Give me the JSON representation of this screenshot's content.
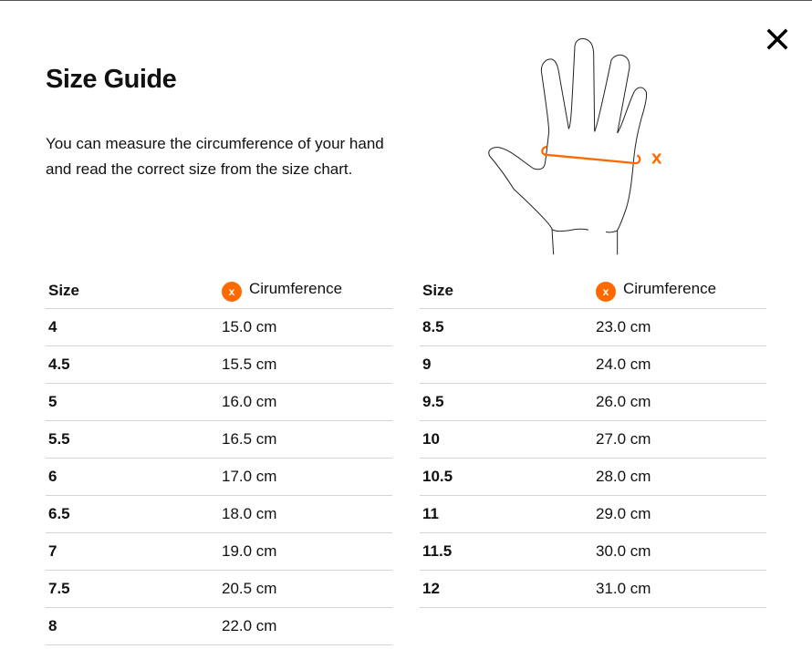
{
  "title": "Size Guide",
  "intro": "You can measure the circumference of your hand and read the correct size from the size chart.",
  "accent_color": "#ff6a00",
  "illustration": {
    "icon": "hand-measure-illustration",
    "marker_label": "x"
  },
  "close_icon": "close-icon",
  "table_headers": {
    "size": "Size",
    "badge": "x",
    "circumference": "Cirumference"
  },
  "left_table": [
    {
      "size": "4",
      "circ": "15.0 cm"
    },
    {
      "size": "4.5",
      "circ": "15.5 cm"
    },
    {
      "size": "5",
      "circ": "16.0 cm"
    },
    {
      "size": "5.5",
      "circ": "16.5 cm"
    },
    {
      "size": "6",
      "circ": "17.0 cm"
    },
    {
      "size": "6.5",
      "circ": "18.0 cm"
    },
    {
      "size": "7",
      "circ": "19.0 cm"
    },
    {
      "size": "7.5",
      "circ": "20.5 cm"
    },
    {
      "size": "8",
      "circ": "22.0 cm"
    }
  ],
  "right_table": [
    {
      "size": "8.5",
      "circ": "23.0 cm"
    },
    {
      "size": "9",
      "circ": "24.0 cm"
    },
    {
      "size": "9.5",
      "circ": "26.0 cm"
    },
    {
      "size": "10",
      "circ": "27.0 cm"
    },
    {
      "size": "10.5",
      "circ": "28.0 cm"
    },
    {
      "size": "11",
      "circ": "29.0 cm"
    },
    {
      "size": "11.5",
      "circ": "30.0 cm"
    },
    {
      "size": "12",
      "circ": "31.0 cm"
    }
  ]
}
